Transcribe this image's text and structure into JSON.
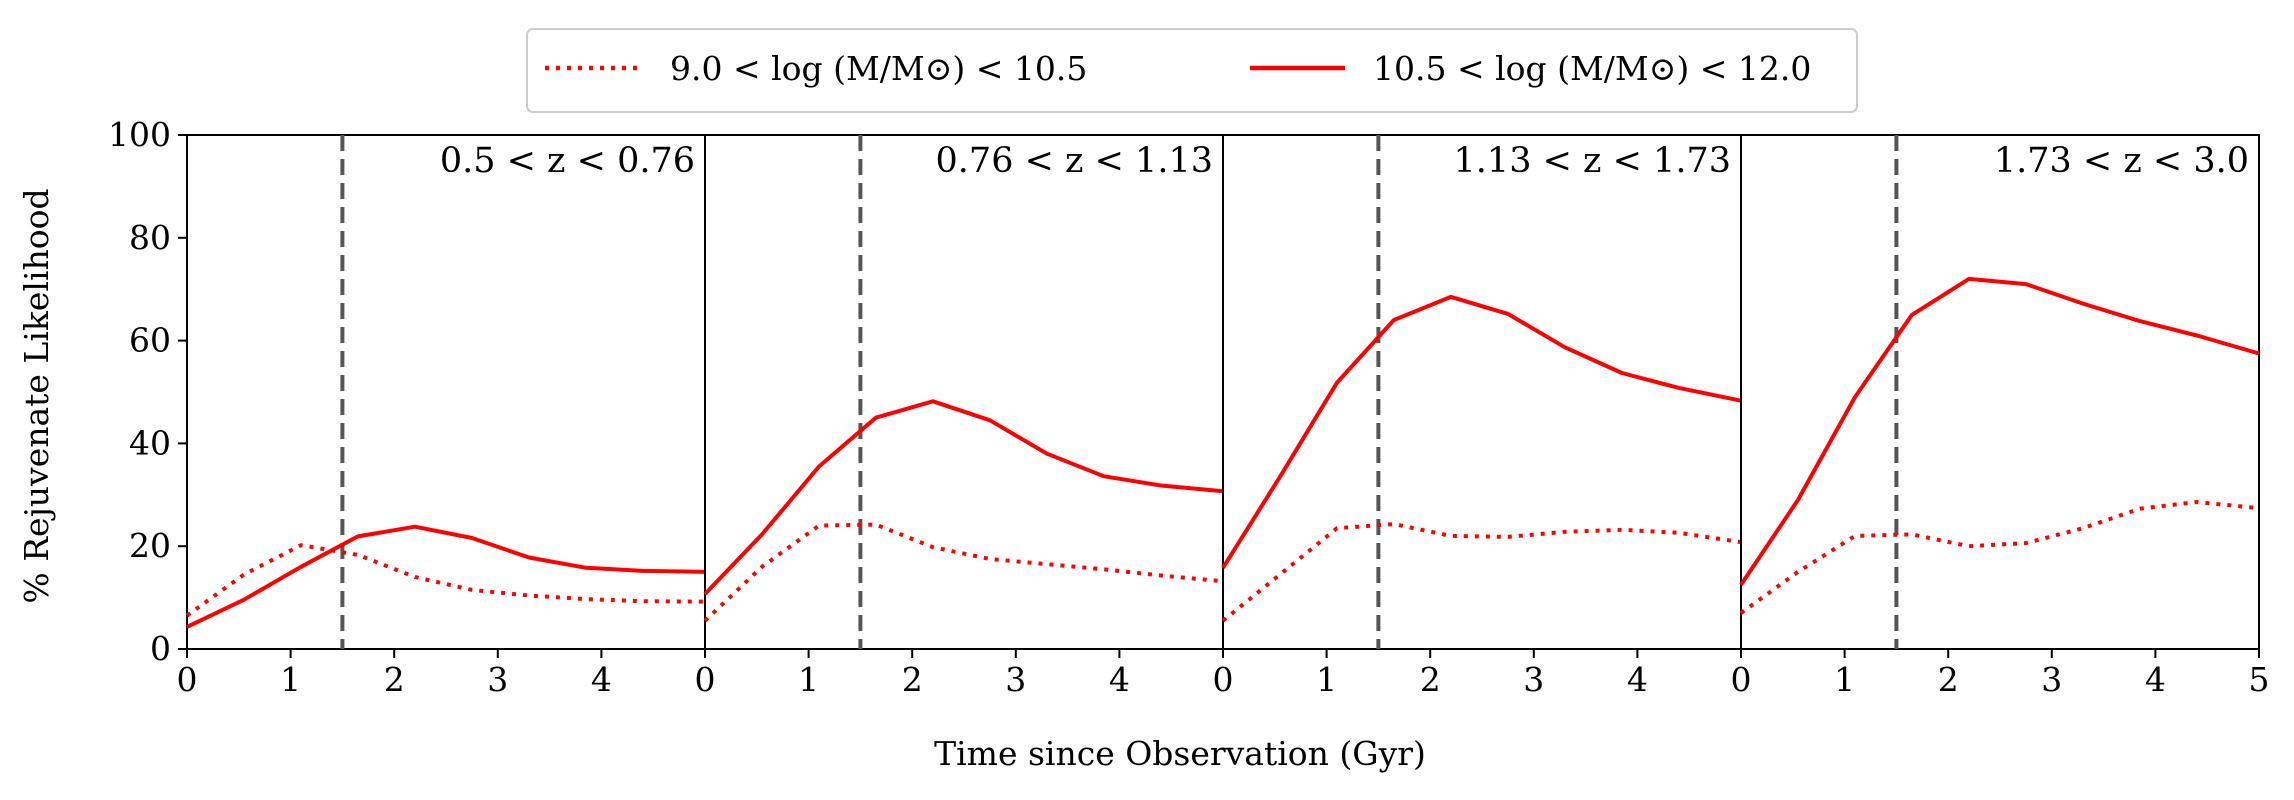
{
  "chart_data": {
    "type": "line",
    "ylabel": "% Rejuvenate Likelihood",
    "xlabel": "Time since Observation (Gyr)",
    "ylim": [
      0,
      100
    ],
    "xlim": [
      0,
      5
    ],
    "yticks": [
      0,
      20,
      40,
      60,
      80,
      100
    ],
    "xticks": [
      0,
      1,
      2,
      3,
      4,
      5
    ],
    "reference_line_x": 1.5,
    "reference_line_color": "#555555",
    "series_color": "#ff0000",
    "legend": {
      "placement": "top-center",
      "entries": [
        {
          "label": "9.0 < log (M/M⊙) < 10.5",
          "style": "dotted"
        },
        {
          "label": "10.5 < log (M/M⊙) < 12.0",
          "style": "solid"
        }
      ]
    },
    "panels": [
      {
        "label": "0.5 < z < 0.76",
        "series": [
          {
            "name": "9.0 < log (M/M⊙) < 10.5",
            "style": "dotted",
            "x": [
              0,
              0.55,
              1.1,
              1.65,
              2.2,
              2.75,
              3.3,
              3.85,
              4.4,
              5.0
            ],
            "y": [
              6.5,
              14.5,
              20.2,
              18.3,
              14.0,
              11.5,
              10.4,
              9.7,
              9.3,
              9.2
            ]
          },
          {
            "name": "10.5 < log (M/M⊙) < 12.0",
            "style": "solid",
            "x": [
              0,
              0.55,
              1.1,
              1.65,
              2.2,
              2.75,
              3.3,
              3.85,
              4.4,
              5.0
            ],
            "y": [
              4.3,
              9.6,
              16.0,
              21.9,
              23.8,
              21.6,
              17.8,
              15.8,
              15.2,
              15.0
            ]
          }
        ]
      },
      {
        "label": "0.76 < z < 1.13",
        "series": [
          {
            "name": "9.0 < log (M/M⊙) < 10.5",
            "style": "dotted",
            "x": [
              0,
              0.55,
              1.1,
              1.65,
              2.2,
              2.75,
              3.3,
              3.85,
              4.4,
              5.0
            ],
            "y": [
              5.5,
              16.0,
              24.0,
              24.2,
              19.8,
              17.5,
              16.5,
              15.5,
              14.3,
              13.2
            ]
          },
          {
            "name": "10.5 < log (M/M⊙) < 12.0",
            "style": "solid",
            "x": [
              0,
              0.55,
              1.1,
              1.65,
              2.2,
              2.75,
              3.3,
              3.85,
              4.4,
              5.0
            ],
            "y": [
              10.7,
              22.3,
              35.5,
              45.0,
              48.2,
              44.5,
              38.0,
              33.6,
              31.8,
              30.7
            ]
          }
        ]
      },
      {
        "label": "1.13 < z < 1.73",
        "series": [
          {
            "name": "9.0 < log (M/M⊙) < 10.5",
            "style": "dotted",
            "x": [
              0,
              0.55,
              1.1,
              1.65,
              2.2,
              2.75,
              3.3,
              3.85,
              4.4,
              5.0
            ],
            "y": [
              5.5,
              14.5,
              23.5,
              24.3,
              22.0,
              21.8,
              22.8,
              23.2,
              22.6,
              20.8
            ]
          },
          {
            "name": "10.5 < log (M/M⊙) < 12.0",
            "style": "solid",
            "x": [
              0,
              0.55,
              1.1,
              1.65,
              2.2,
              2.75,
              3.3,
              3.85,
              4.4,
              5.0
            ],
            "y": [
              15.8,
              33.5,
              51.8,
              64.0,
              68.5,
              65.2,
              58.7,
              53.7,
              50.8,
              48.3
            ]
          }
        ]
      },
      {
        "label": "1.73 < z < 3.0",
        "series": [
          {
            "name": "9.0 < log (M/M⊙) < 10.5",
            "style": "dotted",
            "x": [
              0,
              0.55,
              1.1,
              1.65,
              2.2,
              2.75,
              3.3,
              3.85,
              4.4,
              5.0
            ],
            "y": [
              7.0,
              15.0,
              22.0,
              22.3,
              20.0,
              20.6,
              23.5,
              27.3,
              28.6,
              27.4
            ]
          },
          {
            "name": "10.5 < log (M/M⊙) < 12.0",
            "style": "solid",
            "x": [
              0,
              0.55,
              1.1,
              1.65,
              2.2,
              2.75,
              3.3,
              3.85,
              4.4,
              5.0
            ],
            "y": [
              12.5,
              29.0,
              49.0,
              65.0,
              72.0,
              71.0,
              67.2,
              63.8,
              61.0,
              57.5
            ]
          }
        ]
      }
    ]
  }
}
